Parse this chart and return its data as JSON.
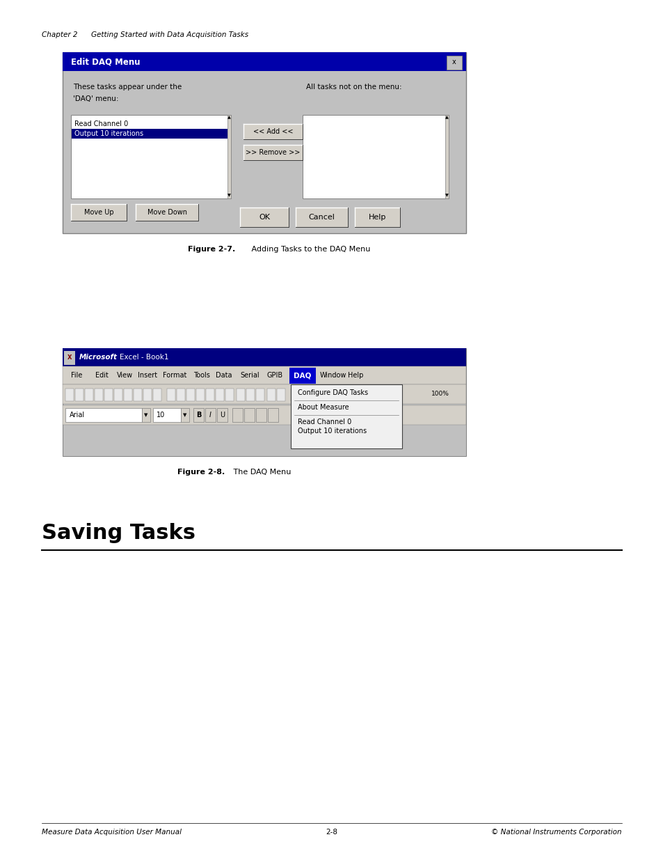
{
  "bg_color": "#ffffff",
  "page_width": 9.54,
  "page_height": 12.35,
  "chapter_header": "Chapter 2      Getting Started with Data Acquisition Tasks",
  "fig1_caption_bold": "Figure 2-7.",
  "fig1_caption_normal": " Adding Tasks to the DAQ Menu",
  "fig2_caption_bold": "Figure 2-8.",
  "fig2_caption_normal": " The DAQ Menu",
  "section_title": "Saving Tasks",
  "footer_left": "Measure Data Acquisition User Manual",
  "footer_center": "2-8",
  "footer_right": "© National Instruments Corporation",
  "dialog_title": "Edit DAQ Menu",
  "dialog_title_bg": "#0000AA",
  "dialog_title_color": "#ffffff",
  "dialog_bg": "#c0c0c0",
  "dialog_left_label1": "These tasks appear under the",
  "dialog_left_label2": "'DAQ' menu:",
  "dialog_right_label": "All tasks not on the menu:",
  "dialog_list_items": [
    "Read Channel 0",
    "Output 10 iterations"
  ],
  "dialog_selected_item": 1,
  "btn_add": "<< Add <<",
  "btn_remove": ">> Remove >>",
  "btn_moveup": "Move Up",
  "btn_movedown": "Move Down",
  "btn_ok": "OK",
  "btn_cancel": "Cancel",
  "btn_help": "Help",
  "excel_menu": [
    "File",
    "Edit",
    "View",
    "Insert",
    "Format",
    "Tools",
    "Data",
    "Serial",
    "GPIB",
    "DAQ",
    "Window",
    "Help"
  ],
  "daq_menu_items": [
    "Configure DAQ Tasks",
    "",
    "About Measure",
    "",
    "Read Channel 0",
    "Output 10 iterations"
  ],
  "font_name": "DejaVu Sans"
}
